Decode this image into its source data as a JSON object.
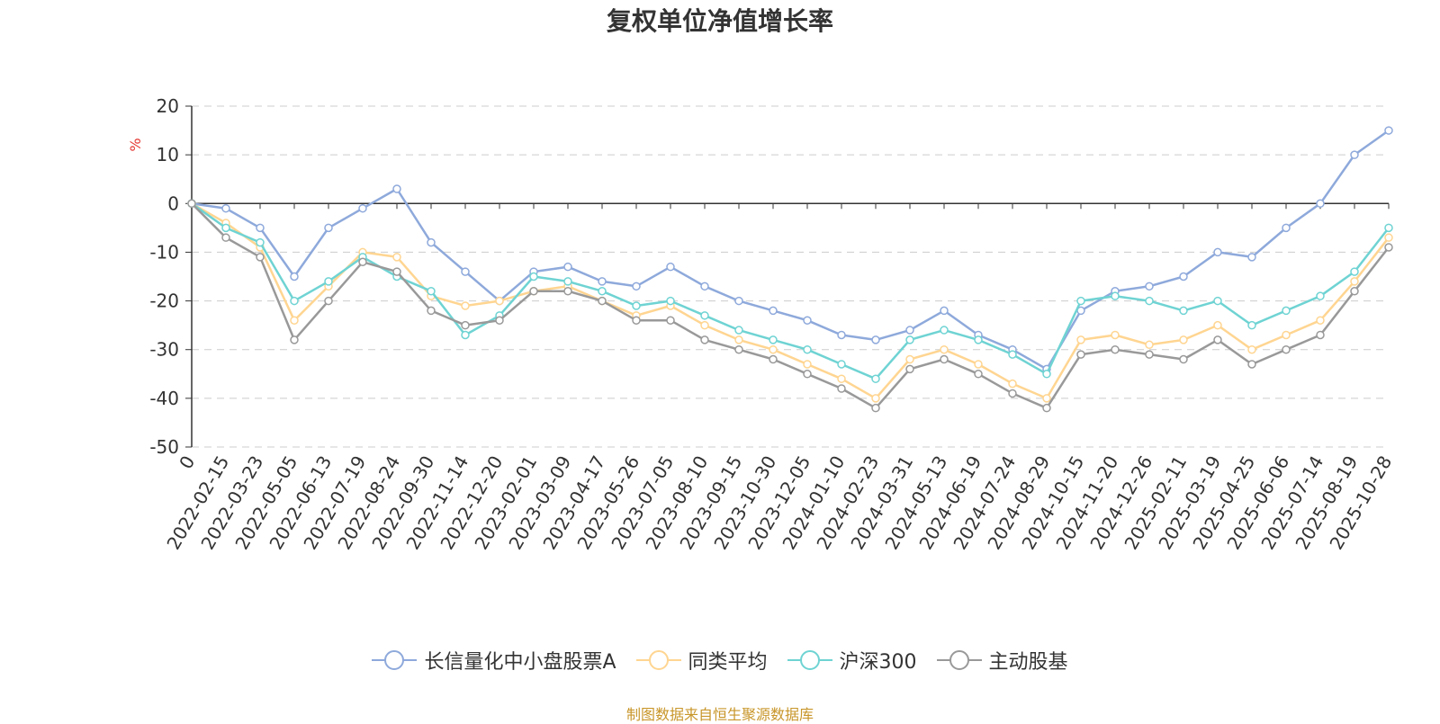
{
  "chart_data": {
    "type": "line",
    "title": "复权单位净值增长率",
    "ylabel": "%",
    "ylim": [
      -50,
      20
    ],
    "yticks": [
      20,
      10,
      0,
      -10,
      -20,
      -30,
      -40,
      -50
    ],
    "grid": true,
    "legend_position": "bottom",
    "x": [
      "0",
      "2022-02-15",
      "2022-03-23",
      "2022-05-05",
      "2022-06-13",
      "2022-07-19",
      "2022-08-24",
      "2022-09-30",
      "2022-11-14",
      "2022-12-20",
      "2023-02-01",
      "2023-03-09",
      "2023-04-17",
      "2023-05-26",
      "2023-07-05",
      "2023-08-10",
      "2023-09-15",
      "2023-10-30",
      "2023-12-05",
      "2024-01-10",
      "2024-02-23",
      "2024-03-31",
      "2024-05-13",
      "2024-06-19",
      "2024-07-24",
      "2024-08-29",
      "2024-10-15",
      "2024-11-20",
      "2024-12-26",
      "2025-02-11",
      "2025-03-19",
      "2025-04-25",
      "2025-06-06",
      "2025-07-14",
      "2025-08-19",
      "2025-10-28"
    ],
    "series": [
      {
        "name": "长信量化中小盘股票A",
        "color": "#8ea9db",
        "values": [
          0,
          -1,
          -5,
          -15,
          -5,
          -1,
          3,
          -8,
          -14,
          -20,
          -14,
          -13,
          -16,
          -17,
          -13,
          -17,
          -20,
          -22,
          -24,
          -27,
          -28,
          -26,
          -22,
          -27,
          -30,
          -34,
          -22,
          -18,
          -17,
          -15,
          -10,
          -11,
          -5,
          0,
          10,
          15
        ]
      },
      {
        "name": "同类平均",
        "color": "#ffd591",
        "values": [
          0,
          -4,
          -9,
          -24,
          -17,
          -10,
          -11,
          -19,
          -21,
          -20,
          -18,
          -17,
          -20,
          -23,
          -21,
          -25,
          -28,
          -30,
          -33,
          -36,
          -40,
          -32,
          -30,
          -33,
          -37,
          -40,
          -28,
          -27,
          -29,
          -28,
          -25,
          -30,
          -27,
          -24,
          -16,
          -7
        ]
      },
      {
        "name": "沪深300",
        "color": "#6fd3d3",
        "values": [
          0,
          -5,
          -8,
          -20,
          -16,
          -11,
          -15,
          -18,
          -27,
          -23,
          -15,
          -16,
          -18,
          -21,
          -20,
          -23,
          -26,
          -28,
          -30,
          -33,
          -36,
          -28,
          -26,
          -28,
          -31,
          -35,
          -20,
          -19,
          -20,
          -22,
          -20,
          -25,
          -22,
          -19,
          -14,
          -5
        ]
      },
      {
        "name": "主动股基",
        "color": "#999999",
        "values": [
          0,
          -7,
          -11,
          -28,
          -20,
          -12,
          -14,
          -22,
          -25,
          -24,
          -18,
          -18,
          -20,
          -24,
          -24,
          -28,
          -30,
          -32,
          -35,
          -38,
          -42,
          -34,
          -32,
          -35,
          -39,
          -42,
          -31,
          -30,
          -31,
          -32,
          -28,
          -33,
          -30,
          -27,
          -18,
          -9
        ]
      }
    ]
  },
  "legend": [
    {
      "label": "长信量化中小盘股票A",
      "color": "#8ea9db"
    },
    {
      "label": "同类平均",
      "color": "#ffd591"
    },
    {
      "label": "沪深300",
      "color": "#6fd3d3"
    },
    {
      "label": "主动股基",
      "color": "#999999"
    }
  ],
  "source_text": "制图数据来自恒生聚源数据库"
}
